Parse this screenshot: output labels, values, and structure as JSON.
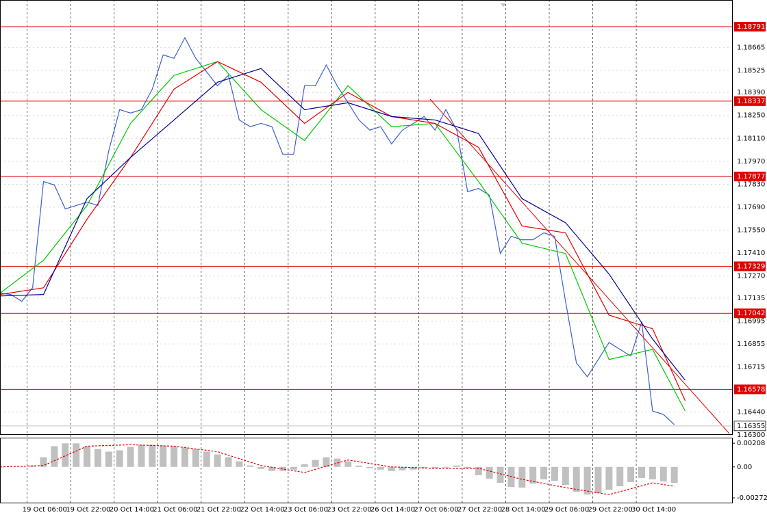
{
  "chart_data": [
    {
      "type": "line",
      "x": [
        0,
        4,
        8,
        12,
        16,
        20,
        24,
        28,
        32,
        36,
        40,
        44,
        48,
        52,
        56,
        60,
        64,
        68,
        72,
        76,
        80,
        84,
        88,
        92,
        96,
        100,
        104,
        108,
        112,
        116,
        120,
        124,
        128,
        132,
        136,
        140,
        144,
        148,
        152,
        156,
        160,
        164,
        168,
        172,
        176,
        180,
        184,
        188,
        192,
        196,
        200,
        204,
        208,
        212,
        216,
        220,
        224,
        228,
        232,
        236,
        240,
        244,
        248
      ],
      "xlim": [
        0,
        269.5
      ],
      "xticks": [
        {
          "value": 10,
          "label": "19 Oct 06:00"
        },
        {
          "value": 26,
          "label": "19 Oct 22:00"
        },
        {
          "value": 42,
          "label": "20 Oct 14:00"
        },
        {
          "value": 58,
          "label": "21 Oct 06:00"
        },
        {
          "value": 74,
          "label": "21 Oct 22:00"
        },
        {
          "value": 90,
          "label": "22 Oct 14:00"
        },
        {
          "value": 106,
          "label": "23 Oct 06:00"
        },
        {
          "value": 122,
          "label": "23 Oct 22:00"
        },
        {
          "value": 138,
          "label": "26 Oct 14:00"
        },
        {
          "value": 154,
          "label": "27 Oct 06:00"
        },
        {
          "value": 170,
          "label": "27 Oct 22:00"
        },
        {
          "value": 186,
          "label": "28 Oct 14:00"
        },
        {
          "value": 202,
          "label": "29 Oct 06:00"
        },
        {
          "value": 218,
          "label": "29 Oct 22:00"
        },
        {
          "value": 234,
          "label": "30 Oct 14:00"
        }
      ],
      "ylim": [
        1.163,
        1.18954
      ],
      "yticks": [
        1.18665,
        1.18525,
        {
          "value": 1.1839,
          "label": "1.18390"
        },
        {
          "value": 1.1825,
          "label": "1.18250"
        },
        {
          "value": 1.1811,
          "label": "1.18110"
        },
        {
          "value": 1.1797,
          "label": "1.17970"
        },
        {
          "value": 1.1783,
          "label": "1.17830"
        },
        {
          "value": 1.1769,
          "label": "1.17690"
        },
        {
          "value": 1.1755,
          "label": "1.17550"
        },
        {
          "value": 1.1741,
          "label": "1.17410"
        },
        {
          "value": 1.1727,
          "label": "1.17270"
        },
        1.17135,
        1.16995,
        1.16855,
        1.16715,
        {
          "value": 1.1644,
          "label": "1.16440"
        },
        {
          "value": 1.163,
          "label": "1.16300"
        }
      ],
      "grid": true,
      "series": [
        {
          "color": "#3a5fcd",
          "values": [
            1.17165,
            1.17157,
            1.17115,
            1.17198,
            1.17846,
            1.17825,
            1.17679,
            1.177,
            1.17721,
            1.177,
            1.18034,
            1.18285,
            1.18264,
            1.18285,
            1.1841,
            1.18619,
            1.18598,
            1.18724,
            1.18598,
            1.18515,
            1.18431,
            1.18494,
            1.18222,
            1.18181,
            1.18201,
            1.18181,
            1.18013,
            1.18013,
            1.18431,
            1.18431,
            1.18557,
            1.18431,
            1.18327,
            1.18222,
            1.1816,
            1.18181,
            1.18076,
            1.1816,
            1.18201,
            1.18243,
            1.1816,
            1.18285,
            1.1816,
            1.17784,
            1.17804,
            1.17763,
            1.17407,
            1.17512,
            1.17491,
            1.17491,
            1.17533,
            1.17512,
            1.17115,
            1.16739,
            1.16655,
            1.1676,
            1.16864,
            1.16822,
            1.16781,
            1.1699,
            1.16446,
            1.16425,
            1.16363
          ]
        },
        {
          "color": "#00c800",
          "x": [
            0,
            16,
            32,
            48,
            64,
            80,
            96,
            112,
            128,
            144,
            160,
            176,
            192,
            208,
            224,
            240,
            252
          ],
          "values": [
            1.17165,
            1.17366,
            1.177,
            1.18201,
            1.18494,
            1.18578,
            1.18285,
            1.18097,
            1.18431,
            1.18181,
            1.18201,
            1.17846,
            1.1747,
            1.17407,
            1.1676,
            1.16822,
            1.16446
          ]
        },
        {
          "color": "#e00000",
          "x": [
            0,
            16,
            32,
            48,
            64,
            80,
            96,
            112,
            128,
            144,
            160,
            176,
            192,
            208,
            224,
            240,
            252
          ],
          "values": [
            1.17157,
            1.17198,
            1.17616,
            1.17993,
            1.1841,
            1.18578,
            1.18452,
            1.18201,
            1.1839,
            1.18243,
            1.18201,
            1.18055,
            1.17575,
            1.17533,
            1.17031,
            1.16948,
            1.16509
          ]
        },
        {
          "color": "#000090",
          "x": [
            0,
            16,
            32,
            48,
            64,
            80,
            96,
            112,
            128,
            144,
            160,
            176,
            192,
            208,
            224,
            240,
            252
          ],
          "values": [
            1.17148,
            1.17157,
            1.17742,
            1.17993,
            1.18222,
            1.18452,
            1.18536,
            1.18285,
            1.18327,
            1.18243,
            1.18222,
            1.18139,
            1.17742,
            1.17595,
            1.17282,
            1.16885,
            1.16634
          ]
        }
      ],
      "hlines": [
        1.18791,
        1.18337,
        1.17877,
        1.17329,
        1.17042,
        1.16578
      ],
      "hline_color": "#e00000",
      "last_price": 1.16355
    },
    {
      "type": "bar",
      "x": [
        0,
        4,
        8,
        12,
        16,
        20,
        24,
        28,
        32,
        36,
        40,
        44,
        48,
        52,
        56,
        60,
        64,
        68,
        72,
        76,
        80,
        84,
        88,
        92,
        96,
        100,
        104,
        108,
        112,
        116,
        120,
        124,
        128,
        132,
        136,
        140,
        144,
        148,
        152,
        156,
        160,
        164,
        168,
        172,
        176,
        180,
        184,
        188,
        192,
        196,
        200,
        204,
        208,
        212,
        216,
        220,
        224,
        228,
        232,
        236,
        240,
        244,
        248
      ],
      "xlim": [
        0,
        269.5
      ],
      "ylim": [
        -0.0032,
        0.00257
      ],
      "yticks": [
        0.00208,
        {
          "value": 0,
          "label": "0.00"
        },
        -0.00272
      ],
      "series": [
        {
          "type": "bar",
          "color": "#c0c0c0",
          "values": [
            0,
            0,
            0,
            0.00012,
            0.00085,
            0.00182,
            0.00207,
            0.00207,
            0.00182,
            0.00158,
            0.00134,
            0.00146,
            0.00176,
            0.00195,
            0.00195,
            0.00188,
            0.00182,
            0.0017,
            0.00158,
            0.00134,
            0.00109,
            0.00085,
            0.00049,
            0.00012,
            -0.00018,
            -0.00036,
            -0.00036,
            -0.00024,
            0.00024,
            0.00061,
            0.00085,
            0.00073,
            0.00049,
            0.00012,
            -0.00012,
            -0.00024,
            -0.00036,
            -0.0003,
            -0.00024,
            -0.00012,
            -0.00012,
            -6e-05,
            0.00012,
            -0.00012,
            -0.00073,
            -0.00103,
            -0.0014,
            -0.00176,
            -0.00182,
            -0.00146,
            -0.00109,
            -0.00122,
            -0.00158,
            -0.00219,
            -0.00243,
            -0.00231,
            -0.00201,
            -0.0017,
            -0.00134,
            -0.00097,
            -0.00109,
            -0.00128,
            -0.0014
          ]
        },
        {
          "type": "line",
          "color": "#e00000",
          "x": [
            0,
            16,
            32,
            48,
            64,
            80,
            96,
            112,
            128,
            144,
            160,
            176,
            192,
            208,
            224,
            240,
            248
          ],
          "values": [
            0,
            0.00012,
            0.00182,
            0.00195,
            0.00182,
            0.00134,
            0.00012,
            -0.00049,
            0.00061,
            0,
            -0.00012,
            -0.00012,
            -0.00109,
            -0.00182,
            -0.00243,
            -0.0014,
            -0.0017
          ]
        }
      ]
    }
  ]
}
